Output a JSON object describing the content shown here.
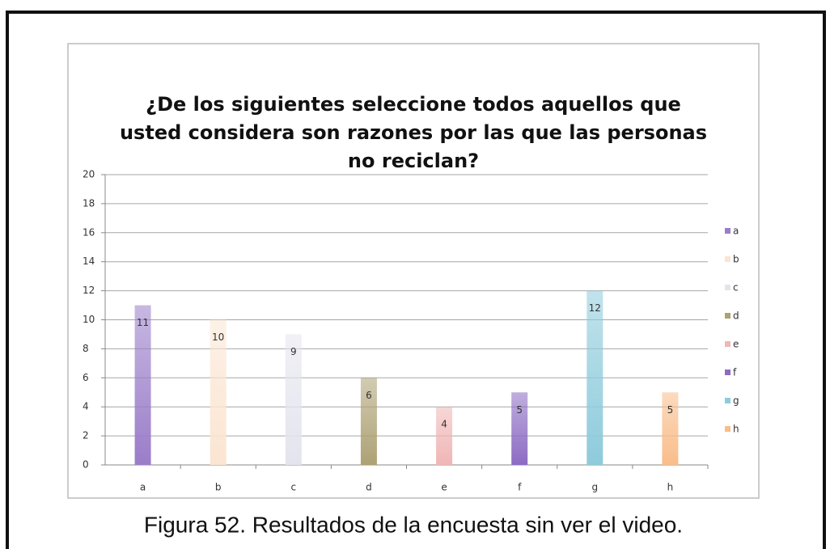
{
  "chart_data": {
    "type": "bar",
    "title": "¿De los siguientes seleccione todos aquellos que usted considera son razones por las que las personas no reciclan?",
    "title_lines": [
      "¿De los siguientes seleccione todos aquellos que",
      "usted considera son razones por las que las personas",
      "no reciclan?"
    ],
    "categories": [
      "a",
      "b",
      "c",
      "d",
      "e",
      "f",
      "g",
      "h"
    ],
    "values": [
      11,
      10,
      9,
      6,
      4,
      5,
      12,
      5
    ],
    "colors": [
      "#9a7dc9",
      "#fbe5d2",
      "#e4e4ee",
      "#ada174",
      "#f0b6b6",
      "#8c6bc3",
      "#8ecbdc",
      "#f9bd8a"
    ],
    "ylim": [
      0,
      20
    ],
    "yticks": [
      0,
      2,
      4,
      6,
      8,
      10,
      12,
      14,
      16,
      18,
      20
    ],
    "grid": true,
    "legend": "right"
  },
  "caption": "Figura 52. Resultados de la encuesta sin ver el video."
}
